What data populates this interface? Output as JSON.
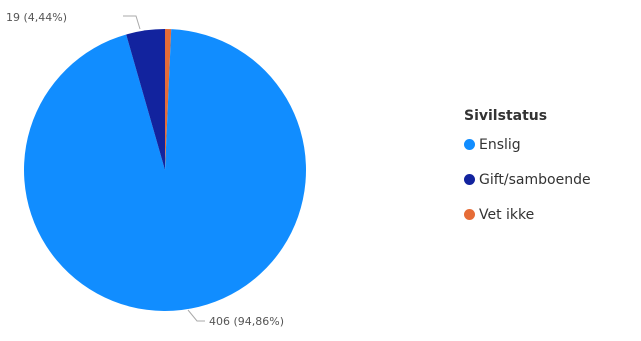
{
  "chart_data": {
    "type": "pie",
    "legend": {
      "title": "Sivilstatus",
      "position": "right"
    },
    "slices": [
      {
        "name": "Enslig",
        "value": 406,
        "percent": "94,86%",
        "color": "#118DFF",
        "label": "406 (94,86%)"
      },
      {
        "name": "Gift/samboende",
        "value": 19,
        "percent": "4,44%",
        "color": "#12239E",
        "label": "19 (4,44%)"
      },
      {
        "name": "Vet ikke",
        "value": 3,
        "percent": "0,70%",
        "color": "#E66C37",
        "label": ""
      }
    ]
  }
}
